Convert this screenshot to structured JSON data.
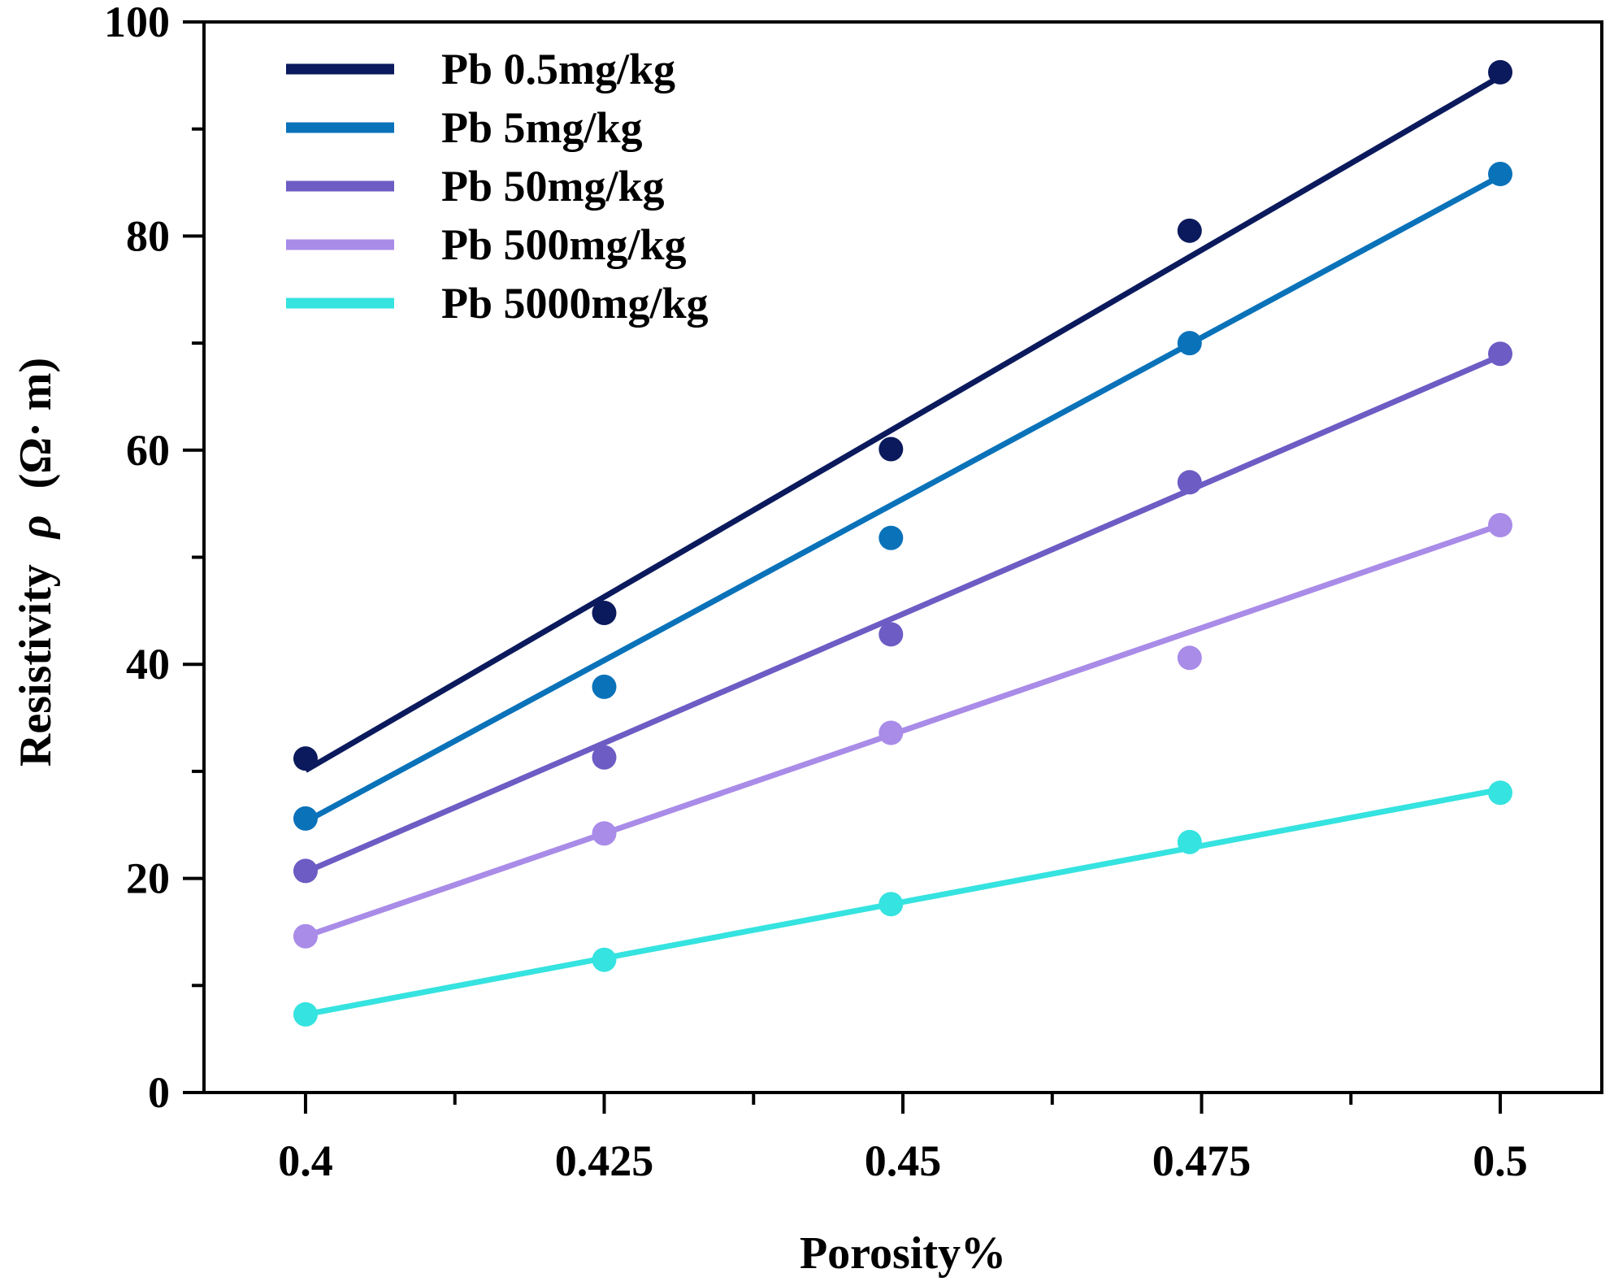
{
  "chart_data": {
    "type": "scatter",
    "title": "",
    "xlabel": "Porosity%",
    "ylabel": "Resistivity",
    "ylabel_symbol": "ρ",
    "ylabel_unit": "(Ω· m)",
    "xlim": [
      0.3915,
      0.5085
    ],
    "ylim": [
      0,
      100
    ],
    "xticks": [
      0.4,
      0.425,
      0.45,
      0.475,
      0.5
    ],
    "xtick_labels": [
      "0.4",
      "0.425",
      "0.45",
      "0.475",
      "0.5"
    ],
    "x_minor_ticks": [
      0.4125,
      0.4375,
      0.4625,
      0.4875
    ],
    "yticks": [
      0,
      20,
      40,
      60,
      80,
      100
    ],
    "ytick_labels": [
      "0",
      "20",
      "40",
      "60",
      "80",
      "100"
    ],
    "y_minor_ticks": [
      10,
      30,
      50,
      70,
      90
    ],
    "grid": false,
    "legend_position": "top-left",
    "x": [
      0.4,
      0.425,
      0.449,
      0.474,
      0.5
    ],
    "series": [
      {
        "name": "Pb 0.5mg/kg",
        "color": "#0b1a5c",
        "values": [
          31.2,
          44.8,
          60.1,
          80.5,
          95.3
        ],
        "fit": {
          "x": [
            0.4,
            0.5
          ],
          "y": [
            30.1,
            94.9
          ]
        }
      },
      {
        "name": "Pb 5mg/kg",
        "color": "#0a72b9",
        "values": [
          25.6,
          37.9,
          51.8,
          70.0,
          85.8
        ],
        "fit": {
          "x": [
            0.4,
            0.5
          ],
          "y": [
            25.3,
            85.6
          ]
        }
      },
      {
        "name": "Pb 50mg/kg",
        "color": "#6c5cc4",
        "values": [
          20.7,
          31.3,
          42.8,
          57.0,
          69.0
        ],
        "fit": {
          "x": [
            0.4,
            0.5
          ],
          "y": [
            20.6,
            68.8
          ]
        }
      },
      {
        "name": "Pb 500mg/kg",
        "color": "#a98be8",
        "values": [
          14.6,
          24.2,
          33.6,
          40.6,
          53.0
        ],
        "fit": {
          "x": [
            0.4,
            0.5
          ],
          "y": [
            14.6,
            53.0
          ]
        }
      },
      {
        "name": "Pb 5000mg/kg",
        "color": "#35e3e0",
        "values": [
          7.3,
          12.4,
          17.6,
          23.4,
          28.0
        ],
        "fit": {
          "x": [
            0.4,
            0.5
          ],
          "y": [
            7.3,
            28.3
          ]
        }
      }
    ]
  }
}
